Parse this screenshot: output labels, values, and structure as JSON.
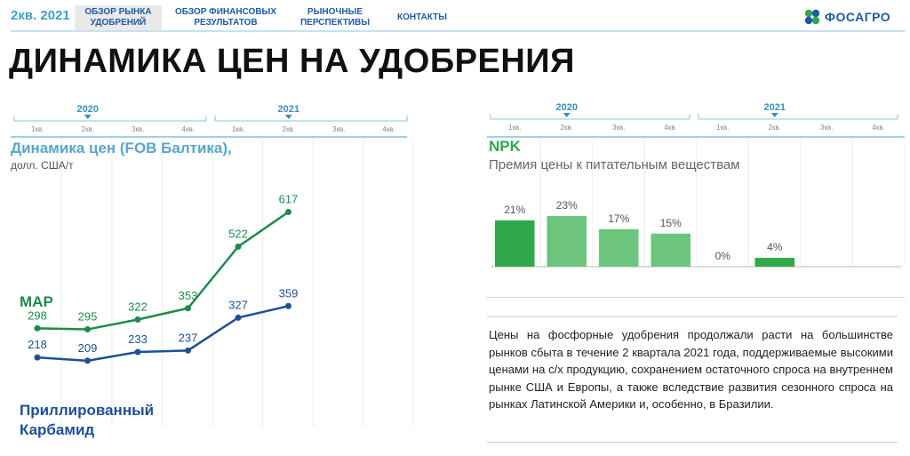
{
  "header": {
    "quarter": "2кв. 2021",
    "tabs": [
      {
        "label1": "ОБЗОР РЫНКА",
        "label2": "УДОБРЕНИЙ"
      },
      {
        "label1": "ОБЗОР ФИНАНСОВЫХ",
        "label2": "РЕЗУЛЬТАТОВ"
      },
      {
        "label1": "РЫНОЧНЫЕ",
        "label2": "ПЕРСПЕКТИВЫ"
      },
      {
        "label1": "КОНТАКТЫ",
        "label2": ""
      }
    ],
    "logo": "ФОСАГРО"
  },
  "page_title": "ДИНАМИКА ЦЕН НА УДОБРЕНИЯ",
  "timeline": {
    "years": [
      "2020",
      "2021"
    ],
    "quarters": [
      "1кв.",
      "2кв.",
      "3кв.",
      "4кв."
    ]
  },
  "left_panel": {
    "title": "Динамика цен (FOB Балтика),",
    "unit": "долл. США/т",
    "series_labels": {
      "map": "MAP",
      "urea_line1": "Приллированный",
      "urea_line2": "Карбамид"
    }
  },
  "right_panel": {
    "title": "NPK",
    "subtitle": "Премия цены к питательным веществам"
  },
  "description": "Цены на фосфорные удобрения продолжали расти на большинстве рынков сбыта в течение 2 квартала 2021 года, поддерживаемые высокими ценами на с/х продукцию, сохранением остаточного спроса на внутреннем рынке США и Европы, а также вследствие развития сезонного спроса на рынках Латинской Америки и, особенно, в Бразилии.",
  "chart_data": [
    {
      "type": "line",
      "title": "Динамика цен (FOB Балтика),",
      "ylabel": "долл. США/т",
      "categories": [
        "1кв. 2020",
        "2кв. 2020",
        "3кв. 2020",
        "4кв. 2020",
        "1кв. 2021",
        "2кв. 2021"
      ],
      "series": [
        {
          "name": "MAP",
          "values": [
            298,
            295,
            322,
            353,
            522,
            617
          ],
          "color": "#1f8a4c"
        },
        {
          "name": "Приллированный Карбамид",
          "values": [
            218,
            209,
            233,
            237,
            327,
            359
          ],
          "color": "#1f4f96"
        }
      ],
      "ylim": [
        150,
        650
      ]
    },
    {
      "type": "bar",
      "title": "NPK",
      "subtitle": "Премия цены к питательным веществам",
      "categories": [
        "1кв. 2020",
        "2кв. 2020",
        "3кв. 2020",
        "4кв. 2020",
        "1кв. 2021",
        "2кв. 2021"
      ],
      "values": [
        21,
        23,
        17,
        15,
        0,
        4
      ],
      "labels": [
        "21%",
        "23%",
        "17%",
        "15%",
        "0%",
        "4%"
      ],
      "colors": [
        "#2ea84b",
        "#6cc47d",
        "#6cc47d",
        "#6cc47d",
        "#6cc47d",
        "#2ea84b"
      ],
      "ylim": [
        0,
        25
      ]
    }
  ]
}
